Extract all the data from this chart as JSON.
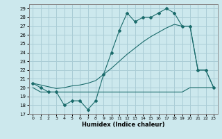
{
  "xlabel": "Humidex (Indice chaleur)",
  "xlim": [
    -0.5,
    23.5
  ],
  "ylim": [
    17,
    29.5
  ],
  "yticks": [
    17,
    18,
    19,
    20,
    21,
    22,
    23,
    24,
    25,
    26,
    27,
    28,
    29
  ],
  "xticks": [
    0,
    1,
    2,
    3,
    4,
    5,
    6,
    7,
    8,
    9,
    10,
    11,
    12,
    13,
    14,
    15,
    16,
    17,
    18,
    19,
    20,
    21,
    22,
    23
  ],
  "bg_color": "#cce8ed",
  "line_color": "#1a6b6b",
  "grid_color": "#aacdd6",
  "line1_x": [
    0,
    1,
    2,
    3,
    4,
    5,
    6,
    7,
    8,
    9,
    10,
    11,
    12,
    13,
    14,
    15,
    16,
    17,
    18,
    19,
    20,
    21,
    22,
    23
  ],
  "line1_y": [
    20.5,
    20.0,
    19.5,
    19.5,
    18.0,
    18.5,
    18.5,
    17.5,
    18.5,
    21.5,
    24.0,
    26.5,
    28.5,
    27.5,
    28.0,
    28.0,
    28.5,
    29.0,
    28.5,
    27.0,
    27.0,
    22.0,
    22.0,
    20.0
  ],
  "line2_x": [
    0,
    1,
    2,
    3,
    4,
    5,
    6,
    7,
    8,
    9,
    10,
    11,
    12,
    13,
    14,
    15,
    16,
    17,
    18,
    19,
    20,
    21,
    22,
    23
  ],
  "line2_y": [
    20.0,
    19.5,
    19.5,
    19.5,
    19.5,
    19.5,
    19.5,
    19.5,
    19.5,
    19.5,
    19.5,
    19.5,
    19.5,
    19.5,
    19.5,
    19.5,
    19.5,
    19.5,
    19.5,
    19.5,
    20.0,
    20.0,
    20.0,
    20.0
  ],
  "line3_x": [
    0,
    1,
    2,
    3,
    4,
    5,
    6,
    7,
    8,
    9,
    10,
    11,
    12,
    13,
    14,
    15,
    16,
    17,
    18,
    19,
    20,
    21,
    22,
    23
  ],
  "line3_y": [
    20.5,
    20.3,
    20.1,
    19.9,
    20.0,
    20.2,
    20.3,
    20.5,
    20.8,
    21.5,
    22.2,
    23.0,
    23.8,
    24.5,
    25.2,
    25.8,
    26.3,
    26.8,
    27.2,
    27.0,
    27.0,
    22.0,
    22.0,
    20.0
  ]
}
